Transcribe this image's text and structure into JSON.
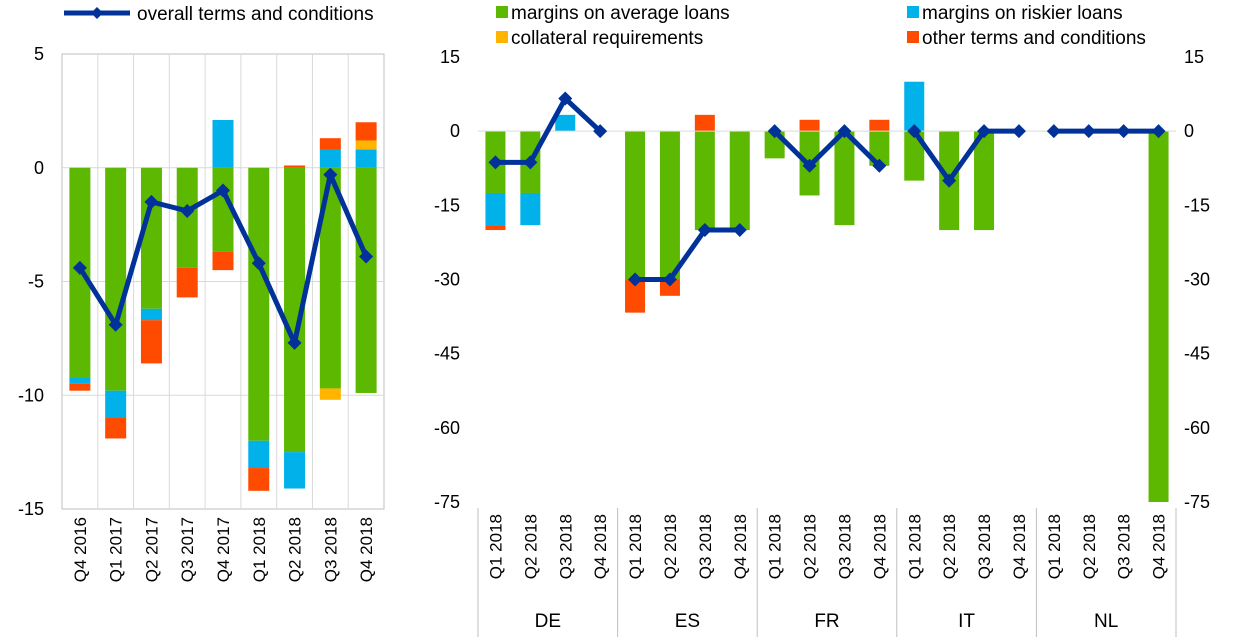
{
  "colors": {
    "margins_avg": "#5cb800",
    "margins_risk": "#00b1ea",
    "collateral": "#ffb400",
    "other": "#ff4b00",
    "overall": "#003299",
    "gridline": "#d9d9d9",
    "axis": "#bfbfbf",
    "text": "#000000"
  },
  "legend": {
    "overall": "overall terms and conditions",
    "margins_avg": "margins on average loans",
    "margins_risk": "margins on riskier loans",
    "collateral": "collateral requirements",
    "other": "other terms and conditions"
  },
  "chart_data": [
    {
      "type": "bar",
      "stacked": true,
      "title": "",
      "xlabel": "",
      "ylabel": "",
      "ylim": [
        -15,
        5
      ],
      "yticks": [
        5,
        0,
        -5,
        -10,
        -15
      ],
      "categories": [
        "Q4 2016",
        "Q1 2017",
        "Q2 2017",
        "Q3 2017",
        "Q4 2017",
        "Q1 2018",
        "Q2 2018",
        "Q3 2018",
        "Q4 2018"
      ],
      "series": [
        {
          "name": "margins on average loans",
          "key": "margins_avg",
          "values": [
            -9.2,
            -9.8,
            -6.2,
            -4.4,
            -3.7,
            -12.0,
            -12.5,
            -9.7,
            -9.9
          ]
        },
        {
          "name": "margins on riskier loans",
          "key": "margins_risk",
          "values": [
            -0.3,
            -1.2,
            -0.5,
            0.0,
            2.1,
            -1.2,
            -1.6,
            0.8,
            0.8
          ]
        },
        {
          "name": "collateral requirements",
          "key": "collateral",
          "values": [
            0.0,
            0.0,
            0.0,
            0.0,
            0.0,
            0.0,
            0.0,
            -0.5,
            0.4
          ]
        },
        {
          "name": "other terms and conditions",
          "key": "other",
          "values": [
            -0.3,
            -0.9,
            -1.9,
            -1.3,
            -0.8,
            -1.0,
            0.1,
            0.5,
            0.8
          ]
        }
      ],
      "line": {
        "name": "overall terms and conditions",
        "key": "overall",
        "values": [
          -4.4,
          -6.9,
          -1.5,
          -1.9,
          -1.0,
          -4.2,
          -7.7,
          -0.3,
          -3.9
        ]
      }
    },
    {
      "type": "bar",
      "stacked": true,
      "title": "",
      "xlabel": "",
      "ylabel": "",
      "ylim": [
        -75,
        15
      ],
      "yticks": [
        15,
        0,
        -15,
        -30,
        -45,
        -60,
        -75
      ],
      "categories": [
        "Q1 2018",
        "Q2 2018",
        "Q3 2018",
        "Q4 2018"
      ],
      "groups": [
        {
          "name": "DE",
          "series": {
            "margins_avg": [
              -12.5,
              -12.5,
              0,
              0
            ],
            "margins_risk": [
              -6.5,
              -6.5,
              3.3,
              0
            ],
            "collateral": [
              0,
              0,
              0,
              0
            ],
            "other": [
              -1.0,
              0,
              0,
              0
            ]
          },
          "line": [
            -6.3,
            -6.3,
            6.6,
            0
          ]
        },
        {
          "name": "ES",
          "series": {
            "margins_avg": [
              -30,
              -30,
              -20,
              -20
            ],
            "margins_risk": [
              0,
              0,
              0,
              0
            ],
            "collateral": [
              0,
              0,
              0,
              0
            ],
            "other": [
              -6.7,
              -3.3,
              3.3,
              0
            ]
          },
          "line": [
            -30,
            -30,
            -20,
            -20
          ]
        },
        {
          "name": "FR",
          "series": {
            "margins_avg": [
              -5.5,
              -13,
              -19,
              -7
            ],
            "margins_risk": [
              0,
              0,
              0,
              0
            ],
            "collateral": [
              0,
              0,
              0,
              0
            ],
            "other": [
              0,
              2.3,
              0,
              2.3
            ]
          },
          "line": [
            0,
            -7,
            0,
            -7
          ]
        },
        {
          "name": "IT",
          "series": {
            "margins_avg": [
              -10,
              -20,
              -20,
              0
            ],
            "margins_risk": [
              10,
              0,
              0,
              0
            ],
            "collateral": [
              0,
              0,
              0,
              0
            ],
            "other": [
              0,
              0,
              0,
              0
            ]
          },
          "line": [
            0,
            -10,
            0,
            0
          ]
        },
        {
          "name": "NL",
          "series": {
            "margins_avg": [
              0,
              0,
              0,
              -75
            ],
            "margins_risk": [
              0,
              0,
              0,
              0
            ],
            "collateral": [
              0,
              0,
              0,
              0
            ],
            "other": [
              0,
              0,
              0,
              0
            ]
          },
          "line": [
            0,
            0,
            0,
            0
          ]
        }
      ]
    }
  ]
}
